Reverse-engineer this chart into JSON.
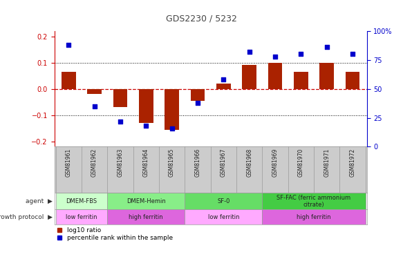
{
  "title": "GDS2230 / 5232",
  "samples": [
    "GSM81961",
    "GSM81962",
    "GSM81963",
    "GSM81964",
    "GSM81965",
    "GSM81966",
    "GSM81967",
    "GSM81968",
    "GSM81969",
    "GSM81970",
    "GSM81971",
    "GSM81972"
  ],
  "log10_ratio": [
    0.065,
    -0.02,
    -0.07,
    -0.13,
    -0.155,
    -0.045,
    0.02,
    0.09,
    0.1,
    0.065,
    0.1,
    0.065
  ],
  "percentile_rank": [
    88,
    35,
    22,
    18,
    16,
    38,
    58,
    82,
    78,
    80,
    86,
    80
  ],
  "ylim": [
    -0.22,
    0.22
  ],
  "yticks_left": [
    -0.2,
    -0.1,
    0.0,
    0.1,
    0.2
  ],
  "yticks_right": [
    0,
    25,
    50,
    75,
    100
  ],
  "bar_color": "#aa2200",
  "scatter_color": "#0000cc",
  "dotted_line_color": "#000000",
  "zero_line_color": "#cc0000",
  "agent_groups": [
    {
      "label": "DMEM-FBS",
      "start": 0,
      "end": 2,
      "color": "#ccffcc"
    },
    {
      "label": "DMEM-Hemin",
      "start": 2,
      "end": 5,
      "color": "#88ee88"
    },
    {
      "label": "SF-0",
      "start": 5,
      "end": 8,
      "color": "#66dd66"
    },
    {
      "label": "SF-FAC (ferric ammonium\ncitrate)",
      "start": 8,
      "end": 12,
      "color": "#44cc44"
    }
  ],
  "protocol_groups": [
    {
      "label": "low ferritin",
      "start": 0,
      "end": 2,
      "color": "#ffaaff"
    },
    {
      "label": "high ferritin",
      "start": 2,
      "end": 5,
      "color": "#dd66dd"
    },
    {
      "label": "low ferritin",
      "start": 5,
      "end": 8,
      "color": "#ffaaff"
    },
    {
      "label": "high ferritin",
      "start": 8,
      "end": 12,
      "color": "#dd66dd"
    }
  ],
  "agent_label": "agent",
  "protocol_label": "growth protocol",
  "legend_ratio_label": "log10 ratio",
  "legend_pct_label": "percentile rank within the sample",
  "title_color": "#444444",
  "left_axis_color": "#cc0000",
  "right_axis_color": "#0000cc",
  "bg_color": "#ffffff",
  "tick_bg_color": "#cccccc"
}
